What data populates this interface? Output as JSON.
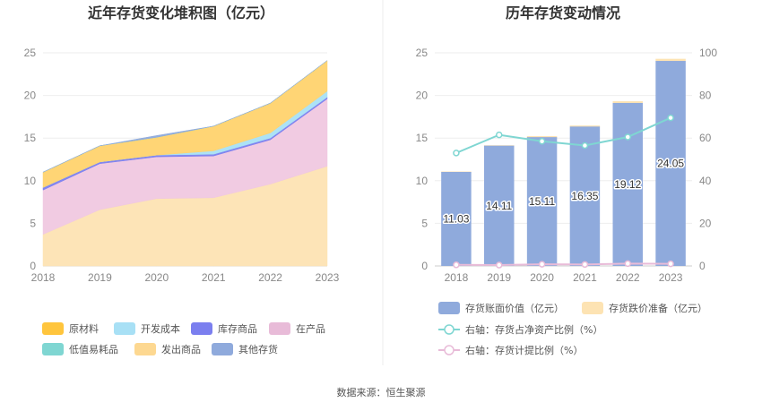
{
  "source_label": "数据来源：恒生聚源",
  "chart_data": [
    {
      "type": "area",
      "stacked": true,
      "title": "近年存货变化堆积图（亿元）",
      "categories": [
        "2018",
        "2019",
        "2020",
        "2021",
        "2022",
        "2023"
      ],
      "ylim": [
        0,
        25
      ],
      "y_ticks": [
        "0",
        "5",
        "10",
        "15",
        "20",
        "25"
      ],
      "series": [
        {
          "name": "发出商品",
          "color": "#fde3b3",
          "values": [
            3.7,
            6.6,
            7.9,
            8.0,
            9.6,
            11.7
          ]
        },
        {
          "name": "在产品",
          "color": "#f0c8e0",
          "values": [
            5.2,
            5.4,
            4.9,
            4.9,
            5.2,
            7.9
          ]
        },
        {
          "name": "库存商品",
          "color": "#7b7fef",
          "values": [
            0.3,
            0.2,
            0.2,
            0.2,
            0.2,
            0.2
          ]
        },
        {
          "name": "开发成本",
          "color": "#a8e0f5",
          "values": [
            0.0,
            0.0,
            0.0,
            0.4,
            0.6,
            0.7
          ]
        },
        {
          "name": "原材料",
          "color": "#ffd36e",
          "values": [
            1.8,
            1.9,
            2.1,
            2.9,
            3.5,
            3.6
          ]
        },
        {
          "name": "低值易耗品",
          "color": "#7fd6d2",
          "values": [
            0,
            0,
            0,
            0,
            0,
            0
          ]
        },
        {
          "name": "其他存货",
          "color": "#8faadc",
          "values": [
            0.0,
            0.0,
            0.2,
            0.0,
            0.0,
            0.0
          ]
        }
      ],
      "legend": [
        {
          "name": "原材料",
          "color": "#ffc53d"
        },
        {
          "name": "开发成本",
          "color": "#a8e0f5"
        },
        {
          "name": "库存商品",
          "color": "#7b7fef"
        },
        {
          "name": "在产品",
          "color": "#e8bbd8"
        },
        {
          "name": "低值易耗品",
          "color": "#7fd6d2"
        },
        {
          "name": "发出商品",
          "color": "#fdd891"
        },
        {
          "name": "其他存货",
          "color": "#8faadc"
        }
      ]
    },
    {
      "type": "bar",
      "title": "历年存货变动情况",
      "categories": [
        "2018",
        "2019",
        "2020",
        "2021",
        "2022",
        "2023"
      ],
      "ylim": [
        0,
        25
      ],
      "y_ticks": [
        "0",
        "5",
        "10",
        "15",
        "20",
        "25"
      ],
      "y2lim": [
        0,
        100
      ],
      "y2_ticks": [
        "0",
        "20",
        "40",
        "60",
        "80",
        "100"
      ],
      "bars": {
        "name": "存货账面价值（亿元）",
        "color": "#8faadc",
        "values": [
          11.03,
          14.11,
          15.11,
          16.35,
          19.12,
          24.05
        ]
      },
      "bar_labels": [
        "11.03",
        "14.11",
        "15.11",
        "16.35",
        "19.12",
        "24.05"
      ],
      "bars_top": {
        "name": "存货跌价准备（亿元）",
        "color": "#fde3b3",
        "values": [
          0.05,
          0.05,
          0.12,
          0.12,
          0.2,
          0.25
        ]
      },
      "lines": [
        {
          "name": "右轴：存货占净资产比例（%）",
          "color": "#7fd6d2",
          "axis": "right",
          "values": [
            53,
            61.5,
            58.5,
            56.5,
            60.5,
            69.5
          ]
        },
        {
          "name": "右轴：存货计提比例（%）",
          "color": "#e8bbd8",
          "axis": "right",
          "values": [
            0.5,
            0.4,
            0.8,
            0.7,
            1.1,
            1.0
          ]
        }
      ]
    }
  ]
}
